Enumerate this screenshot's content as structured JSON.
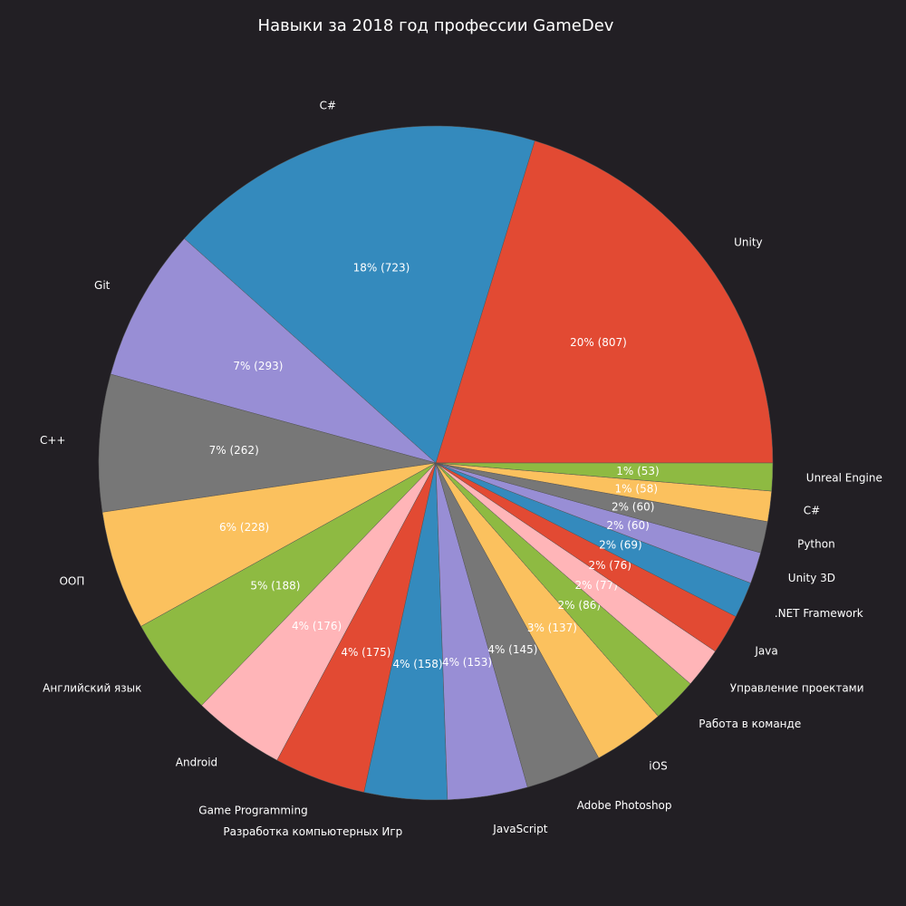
{
  "chart_data": {
    "type": "pie",
    "title": "Навыки за 2018 год профессии GameDev",
    "start_angle_deg": 0,
    "direction": "counterclockwise",
    "slices": [
      {
        "label": "Unity",
        "value": 807,
        "pct_label": "20%  (807)",
        "color": "#e24a33"
      },
      {
        "label": "C#",
        "value": 723,
        "pct_label": "18%  (723)",
        "color": "#348abd"
      },
      {
        "label": "Git",
        "value": 293,
        "pct_label": "7%  (293)",
        "color": "#988ed5"
      },
      {
        "label": "C++",
        "value": 262,
        "pct_label": "7%  (262)",
        "color": "#777777"
      },
      {
        "label": "ООП",
        "value": 228,
        "pct_label": "6%  (228)",
        "color": "#fbc15e"
      },
      {
        "label": "Английский язык",
        "value": 188,
        "pct_label": "5%  (188)",
        "color": "#8eba42"
      },
      {
        "label": "Android",
        "value": 176,
        "pct_label": "4%  (176)",
        "color": "#ffb5b8"
      },
      {
        "label": "Game Programming",
        "value": 175,
        "pct_label": "4%  (175)",
        "color": "#e24a33"
      },
      {
        "label": "Разработка компьютерных Игр",
        "value": 158,
        "pct_label": "4%  (158)",
        "color": "#348abd"
      },
      {
        "label": "JavaScript",
        "value": 153,
        "pct_label": "4%  (153)",
        "color": "#988ed5"
      },
      {
        "label": "Adobe Photoshop",
        "value": 145,
        "pct_label": "4%  (145)",
        "color": "#777777"
      },
      {
        "label": "iOS",
        "value": 137,
        "pct_label": "3%  (137)",
        "color": "#fbc15e"
      },
      {
        "label": "Работа в команде",
        "value": 86,
        "pct_label": "2%  (86)",
        "color": "#8eba42"
      },
      {
        "label": "Управление проектами",
        "value": 77,
        "pct_label": "2%  (77)",
        "color": "#ffb5b8"
      },
      {
        "label": "Java",
        "value": 76,
        "pct_label": "2%  (76)",
        "color": "#e24a33"
      },
      {
        "label": ".NET Framework",
        "value": 69,
        "pct_label": "2%  (69)",
        "color": "#348abd"
      },
      {
        "label": "Unity 3D",
        "value": 60,
        "pct_label": "2%  (60)",
        "color": "#988ed5"
      },
      {
        "label": "Python",
        "value": 60,
        "pct_label": "2%  (60)",
        "color": "#777777"
      },
      {
        "label": "C#",
        "value": 58,
        "pct_label": "1%  (58)",
        "color": "#fbc15e"
      },
      {
        "label": "Unreal Engine",
        "value": 53,
        "pct_label": "1%  (53)",
        "color": "#8eba42"
      }
    ]
  }
}
